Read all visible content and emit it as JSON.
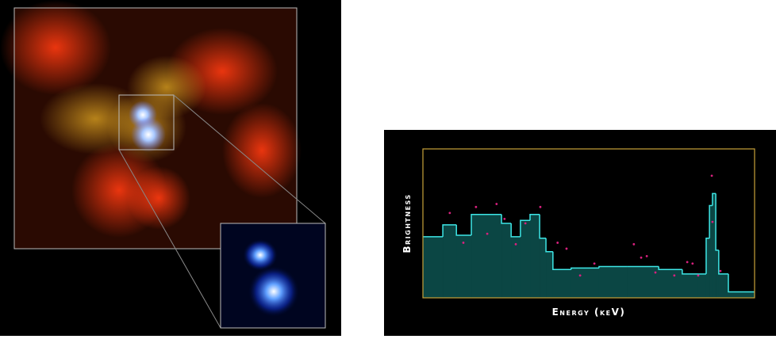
{
  "chart_data": {
    "type": "step",
    "xlabel": "Energy (keV)",
    "ylabel": "Brightness",
    "xlim": [
      0,
      100
    ],
    "ylim": [
      0,
      100
    ],
    "frame_color": "#c8a23a",
    "series": [
      {
        "type": "step",
        "color": "#3ee6e6",
        "fill": "#0b4644",
        "bins": [
          0,
          6,
          10.1,
          14.6,
          23.7,
          26.6,
          29.4,
          32.3,
          35.2,
          37.1,
          39.2,
          44.7,
          53.1,
          61.5,
          71.1,
          78.2,
          83,
          85.4,
          86.4,
          87.3,
          88.3,
          89.2,
          92.1,
          100
        ],
        "values": [
          41,
          49,
          42,
          56,
          50,
          41,
          52,
          56,
          40,
          31,
          19,
          20,
          21,
          21,
          19,
          16,
          16,
          40,
          62,
          70,
          32,
          16,
          4
        ]
      },
      {
        "type": "scatter",
        "color": "#d8207e",
        "x": [
          8.1,
          12.2,
          16.0,
          19.4,
          22.2,
          24.6,
          28.0,
          30.9,
          35.4,
          40.6,
          43.3,
          47.4,
          51.7,
          63.6,
          65.8,
          67.5,
          70.1,
          75.8,
          79.7,
          81.3,
          83.0,
          87.1,
          87.3,
          89.7
        ],
        "values": [
          57,
          37,
          61,
          43,
          63,
          53,
          36,
          50,
          61,
          37,
          33,
          15,
          23,
          36,
          27,
          28,
          17,
          15,
          24,
          23,
          15,
          82,
          51,
          18
        ]
      }
    ]
  }
}
